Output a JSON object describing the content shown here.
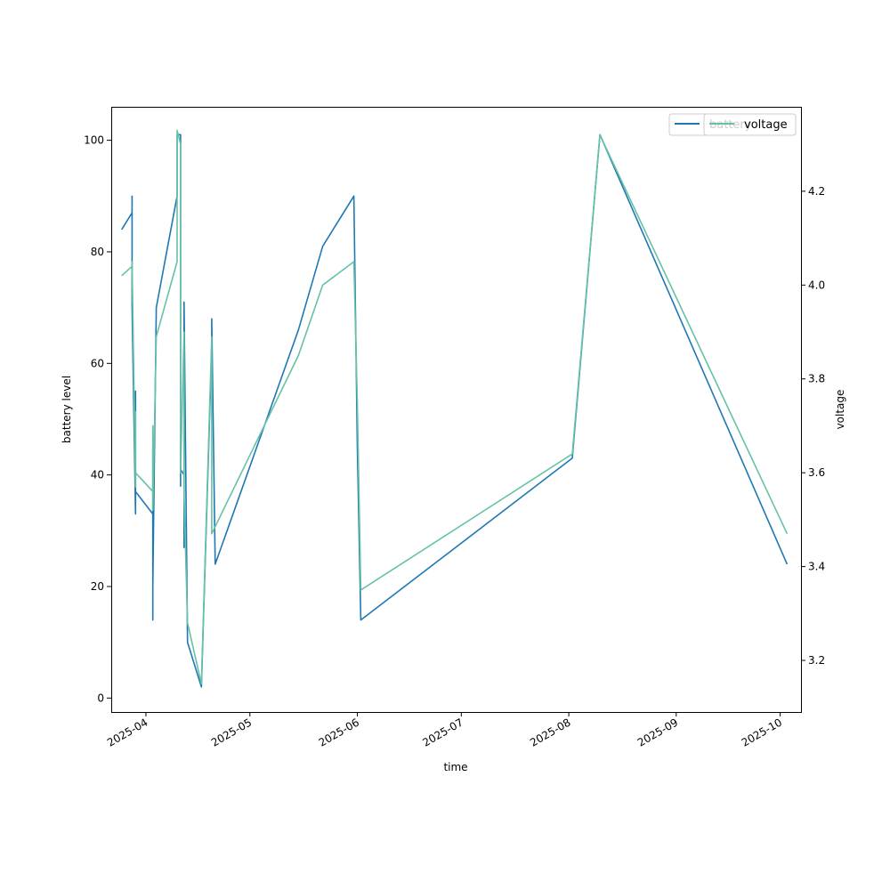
{
  "chart_data": {
    "type": "line",
    "xlabel": "time",
    "ylabel_left": "battery level",
    "ylabel_right": "voltage",
    "x_ticks": [
      "2025-04",
      "2025-05",
      "2025-06",
      "2025-07",
      "2025-08",
      "2025-09",
      "2025-10"
    ],
    "x_range": [
      "2025-03-22",
      "2025-10-07"
    ],
    "ylim_left": [
      -2.5,
      106
    ],
    "ylim_right": [
      3.09,
      4.38
    ],
    "y_ticks_left": [
      "0",
      "20",
      "40",
      "60",
      "80",
      "100"
    ],
    "y_ticks_right": [
      "3.2",
      "3.4",
      "3.6",
      "3.8",
      "4.0",
      "4.2"
    ],
    "grid": false,
    "legend_placement": "top-right",
    "series": [
      {
        "name": "battery",
        "axis": "left",
        "color": "#1f77b4",
        "points": [
          [
            "2025-03-25",
            84
          ],
          [
            "2025-03-28",
            87
          ],
          [
            "2025-03-28",
            90
          ],
          [
            "2025-03-28",
            90
          ],
          [
            "2025-03-28",
            70
          ],
          [
            "2025-03-29",
            33
          ],
          [
            "2025-03-29",
            45
          ],
          [
            "2025-03-29",
            55
          ],
          [
            "2025-03-29",
            37
          ],
          [
            "2025-04-03",
            33
          ],
          [
            "2025-04-03",
            45
          ],
          [
            "2025-04-03",
            14
          ],
          [
            "2025-04-03",
            20
          ],
          [
            "2025-04-04",
            70
          ],
          [
            "2025-04-10",
            90
          ],
          [
            "2025-04-10",
            101
          ],
          [
            "2025-04-11",
            101
          ],
          [
            "2025-04-11",
            90
          ],
          [
            "2025-04-11",
            101
          ],
          [
            "2025-04-11",
            38
          ],
          [
            "2025-04-11",
            41
          ],
          [
            "2025-04-12",
            40
          ],
          [
            "2025-04-12",
            27
          ],
          [
            "2025-04-12",
            71
          ],
          [
            "2025-04-13",
            10
          ],
          [
            "2025-04-17",
            2
          ],
          [
            "2025-04-20",
            63
          ],
          [
            "2025-04-20",
            68
          ],
          [
            "2025-04-21",
            24
          ],
          [
            "2025-05-15",
            66
          ],
          [
            "2025-05-22",
            81
          ],
          [
            "2025-05-31",
            90
          ],
          [
            "2025-06-01",
            45
          ],
          [
            "2025-06-02",
            14
          ],
          [
            "2025-08-02",
            43
          ],
          [
            "2025-08-10",
            101
          ],
          [
            "2025-10-03",
            24
          ]
        ]
      },
      {
        "name": "voltage",
        "axis": "right",
        "color": "#66c2a5",
        "points": [
          [
            "2025-03-25",
            4.02
          ],
          [
            "2025-03-28",
            4.04
          ],
          [
            "2025-03-28",
            4.02
          ],
          [
            "2025-03-28",
            4.05
          ],
          [
            "2025-03-29",
            3.57
          ],
          [
            "2025-03-29",
            3.73
          ],
          [
            "2025-03-29",
            3.58
          ],
          [
            "2025-03-29",
            3.6
          ],
          [
            "2025-04-03",
            3.56
          ],
          [
            "2025-04-03",
            3.7
          ],
          [
            "2025-04-03",
            3.52
          ],
          [
            "2025-04-04",
            3.89
          ],
          [
            "2025-04-10",
            4.05
          ],
          [
            "2025-04-10",
            4.33
          ],
          [
            "2025-04-11",
            4.3
          ],
          [
            "2025-04-11",
            4.12
          ],
          [
            "2025-04-11",
            3.6
          ],
          [
            "2025-04-12",
            3.9
          ],
          [
            "2025-04-12",
            3.55
          ],
          [
            "2025-04-13",
            3.28
          ],
          [
            "2025-04-17",
            3.15
          ],
          [
            "2025-04-20",
            3.89
          ],
          [
            "2025-04-20",
            3.47
          ],
          [
            "2025-05-15",
            3.85
          ],
          [
            "2025-05-22",
            4.0
          ],
          [
            "2025-05-31",
            4.05
          ],
          [
            "2025-06-01",
            3.75
          ],
          [
            "2025-06-02",
            3.35
          ],
          [
            "2025-08-02",
            3.64
          ],
          [
            "2025-08-10",
            4.32
          ],
          [
            "2025-10-03",
            3.47
          ]
        ]
      }
    ]
  }
}
